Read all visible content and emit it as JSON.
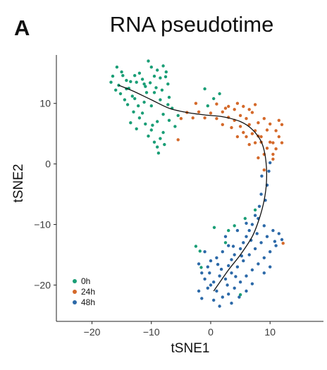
{
  "panel_label": "A",
  "chart_data": {
    "type": "scatter",
    "title": "RNA pseudotime",
    "xlabel": "tSNE1",
    "ylabel": "tSNE2",
    "xlim": [
      -26,
      19
    ],
    "ylim": [
      -26,
      18
    ],
    "xticks": [
      -20,
      -10,
      0,
      10
    ],
    "yticks": [
      -20,
      -10,
      0,
      10
    ],
    "xtick_labels": [
      "−20",
      "−10",
      "0",
      "10"
    ],
    "ytick_labels": [
      "−20",
      "−10",
      "0",
      "10"
    ],
    "grid": false,
    "legend_position": "bottom-left",
    "series": [
      {
        "name": "0h",
        "color": "#1a9e76",
        "points": [
          [
            -16.5,
            14.5
          ],
          [
            -15.8,
            16.0
          ],
          [
            -15.0,
            15.2
          ],
          [
            -14.2,
            13.8
          ],
          [
            -16.0,
            12.2
          ],
          [
            -15.2,
            11.6
          ],
          [
            -14.5,
            10.6
          ],
          [
            -13.8,
            12.5
          ],
          [
            -13.2,
            11.2
          ],
          [
            -12.5,
            13.5
          ],
          [
            -12.0,
            15.0
          ],
          [
            -11.5,
            14.0
          ],
          [
            -11.0,
            12.8
          ],
          [
            -10.5,
            17.0
          ],
          [
            -10.0,
            16.0
          ],
          [
            -9.5,
            14.5
          ],
          [
            -9.0,
            15.5
          ],
          [
            -8.5,
            14.2
          ],
          [
            -8.0,
            16.2
          ],
          [
            -7.5,
            15.2
          ],
          [
            -7.2,
            13.2
          ],
          [
            -10.8,
            11.8
          ],
          [
            -11.2,
            10.2
          ],
          [
            -12.2,
            9.6
          ],
          [
            -13.0,
            8.6
          ],
          [
            -12.0,
            7.6
          ],
          [
            -11.0,
            6.6
          ],
          [
            -10.0,
            5.6
          ],
          [
            -10.5,
            4.6
          ],
          [
            -9.5,
            3.6
          ],
          [
            -9.0,
            2.8
          ],
          [
            -8.5,
            4.2
          ],
          [
            -8.0,
            5.2
          ],
          [
            -9.0,
            7.0
          ],
          [
            -8.0,
            8.2
          ],
          [
            -7.0,
            7.2
          ],
          [
            -6.5,
            9.2
          ],
          [
            -6.0,
            6.2
          ],
          [
            -5.5,
            8.0
          ],
          [
            -7.2,
            9.8
          ],
          [
            -8.5,
            10.6
          ],
          [
            -9.5,
            11.8
          ],
          [
            -10.0,
            9.6
          ],
          [
            -11.5,
            8.4
          ],
          [
            -12.8,
            10.8
          ],
          [
            -14.0,
            9.8
          ],
          [
            -13.5,
            13.6
          ],
          [
            -14.8,
            14.6
          ],
          [
            -16.8,
            13.5
          ],
          [
            -15.5,
            13.0
          ],
          [
            -12.8,
            14.6
          ],
          [
            -10.2,
            13.4
          ],
          [
            -8.2,
            12.2
          ],
          [
            -7.0,
            11.0
          ],
          [
            -13.5,
            6.8
          ],
          [
            -12.5,
            5.8
          ],
          [
            -9.8,
            6.4
          ],
          [
            -8.8,
            1.8
          ],
          [
            -7.8,
            3.2
          ],
          [
            -11.2,
            13.2
          ],
          [
            -9.2,
            12.6
          ],
          [
            -7.6,
            14.4
          ],
          [
            -14.2,
            12.4
          ],
          [
            -1.0,
            12.4
          ],
          [
            -0.5,
            9.6
          ],
          [
            0.5,
            10.8
          ],
          [
            1.5,
            11.6
          ],
          [
            -2.5,
            -13.6
          ],
          [
            -1.8,
            -14.4
          ],
          [
            2.5,
            -13.0
          ],
          [
            4.0,
            -10.2
          ],
          [
            3.0,
            -11.0
          ],
          [
            5.0,
            -21.6
          ],
          [
            7.5,
            -7.6
          ],
          [
            5.8,
            -9.0
          ],
          [
            0.6,
            -10.5
          ],
          [
            -1.6,
            -17.1
          ]
        ]
      },
      {
        "name": "24h",
        "color": "#d4692a",
        "points": [
          [
            -5.0,
            7.5
          ],
          [
            -4.0,
            8.5
          ],
          [
            -3.0,
            7.6
          ],
          [
            -2.0,
            8.6
          ],
          [
            -1.0,
            7.6
          ],
          [
            0.0,
            8.4
          ],
          [
            1.0,
            7.5
          ],
          [
            2.0,
            8.6
          ],
          [
            3.0,
            7.7
          ],
          [
            4.0,
            9.0
          ],
          [
            4.5,
            10.0
          ],
          [
            5.0,
            8.0
          ],
          [
            5.5,
            9.5
          ],
          [
            6.0,
            7.5
          ],
          [
            6.5,
            6.5
          ],
          [
            7.0,
            8.5
          ],
          [
            7.5,
            5.5
          ],
          [
            8.0,
            6.8
          ],
          [
            8.5,
            4.5
          ],
          [
            9.0,
            7.5
          ],
          [
            9.5,
            5.6
          ],
          [
            10.0,
            6.6
          ],
          [
            10.5,
            3.5
          ],
          [
            11.0,
            5.5
          ],
          [
            11.5,
            4.5
          ],
          [
            12.0,
            6.5
          ],
          [
            12.0,
            3.5
          ],
          [
            11.5,
            7.2
          ],
          [
            11.0,
            2.5
          ],
          [
            10.5,
            1.6
          ],
          [
            10.0,
            3.6
          ],
          [
            9.5,
            2.6
          ],
          [
            9.0,
            1.6
          ],
          [
            8.5,
            3.6
          ],
          [
            8.0,
            4.6
          ],
          [
            7.5,
            3.5
          ],
          [
            7.0,
            5.0
          ],
          [
            6.5,
            3.2
          ],
          [
            6.0,
            4.5
          ],
          [
            5.5,
            5.2
          ],
          [
            5.0,
            6.2
          ],
          [
            4.5,
            4.5
          ],
          [
            3.5,
            6.0
          ],
          [
            3.0,
            9.5
          ],
          [
            2.0,
            6.5
          ],
          [
            6.5,
            9.0
          ],
          [
            7.5,
            9.8
          ],
          [
            10.5,
            0.8
          ],
          [
            -5.5,
            4.0
          ],
          [
            -2.5,
            10.0
          ],
          [
            1.0,
            9.9
          ],
          [
            12.2,
            -13.1
          ],
          [
            8.0,
            1.0
          ],
          [
            9.0,
            -1.0
          ],
          [
            4.0,
            7.2
          ],
          [
            2.5,
            9.2
          ]
        ]
      },
      {
        "name": "48h",
        "color": "#2c69a8",
        "points": [
          [
            10.0,
            0.2
          ],
          [
            9.8,
            -1.2
          ],
          [
            9.5,
            -3.5
          ],
          [
            8.5,
            -5.0
          ],
          [
            8.2,
            -7.0
          ],
          [
            7.5,
            -8.5
          ],
          [
            7.0,
            -10.0
          ],
          [
            6.5,
            -11.0
          ],
          [
            6.0,
            -12.0
          ],
          [
            5.5,
            -13.0
          ],
          [
            5.0,
            -14.0
          ],
          [
            4.0,
            -15.0
          ],
          [
            3.5,
            -15.8
          ],
          [
            3.0,
            -13.5
          ],
          [
            2.0,
            -14.5
          ],
          [
            1.0,
            -15.5
          ],
          [
            0.0,
            -16.0
          ],
          [
            -0.5,
            -17.0
          ],
          [
            -1.5,
            -18.0
          ],
          [
            -1.0,
            -19.0
          ],
          [
            0.0,
            -20.0
          ],
          [
            1.0,
            -21.0
          ],
          [
            2.0,
            -22.0
          ],
          [
            3.0,
            -21.5
          ],
          [
            4.0,
            -20.5
          ],
          [
            5.0,
            -19.5
          ],
          [
            6.0,
            -18.5
          ],
          [
            7.0,
            -17.5
          ],
          [
            8.0,
            -16.5
          ],
          [
            9.0,
            -15.5
          ],
          [
            10.0,
            -14.5
          ],
          [
            11.0,
            -13.5
          ],
          [
            12.0,
            -12.5
          ],
          [
            11.5,
            -11.5
          ],
          [
            10.5,
            -11.0
          ],
          [
            9.5,
            -12.0
          ],
          [
            8.5,
            -13.0
          ],
          [
            7.5,
            -14.0
          ],
          [
            6.5,
            -15.0
          ],
          [
            5.5,
            -16.0
          ],
          [
            4.5,
            -17.0
          ],
          [
            3.5,
            -18.0
          ],
          [
            2.5,
            -19.0
          ],
          [
            1.5,
            -18.5
          ],
          [
            0.5,
            -19.5
          ],
          [
            -0.5,
            -20.5
          ],
          [
            0.5,
            -22.5
          ],
          [
            1.5,
            -23.5
          ],
          [
            3.5,
            -23.0
          ],
          [
            6.0,
            -21.0
          ],
          [
            7.0,
            -19.8
          ],
          [
            9.0,
            -18.0
          ],
          [
            10.0,
            -17.0
          ],
          [
            3.0,
            -16.8
          ],
          [
            -2.0,
            -16.5
          ],
          [
            -1.0,
            -14.5
          ],
          [
            2.5,
            -12.0
          ],
          [
            4.5,
            -11.0
          ],
          [
            6.0,
            -9.8
          ],
          [
            8.0,
            -9.0
          ],
          [
            9.0,
            -10.2
          ],
          [
            10.8,
            -12.8
          ],
          [
            -2.0,
            -21.0
          ],
          [
            -1.5,
            -22.2
          ],
          [
            4.8,
            -22.0
          ],
          [
            1.8,
            -17.4
          ],
          [
            5.2,
            -15.2
          ],
          [
            6.8,
            -12.6
          ],
          [
            7.8,
            -11.5
          ],
          [
            3.8,
            -13.6
          ],
          [
            -0.2,
            -18.0
          ],
          [
            1.2,
            -16.6
          ],
          [
            8.6,
            -2.0
          ],
          [
            9.2,
            -6.0
          ],
          [
            2.8,
            -20.0
          ],
          [
            4.2,
            -18.6
          ]
        ]
      }
    ],
    "trajectory": [
      [
        -15.5,
        13.0
      ],
      [
        -13.0,
        12.0
      ],
      [
        -10.0,
        10.6
      ],
      [
        -7.0,
        9.2
      ],
      [
        -4.0,
        8.5
      ],
      [
        -1.0,
        8.1
      ],
      [
        2.0,
        7.8
      ],
      [
        5.0,
        7.0
      ],
      [
        7.0,
        5.7
      ],
      [
        8.6,
        3.5
      ],
      [
        9.3,
        0.5
      ],
      [
        9.4,
        -3.0
      ],
      [
        9.0,
        -6.0
      ],
      [
        8.2,
        -9.0
      ],
      [
        7.0,
        -12.0
      ],
      [
        5.0,
        -15.0
      ],
      [
        3.0,
        -17.5
      ],
      [
        0.5,
        -21.0
      ]
    ]
  }
}
